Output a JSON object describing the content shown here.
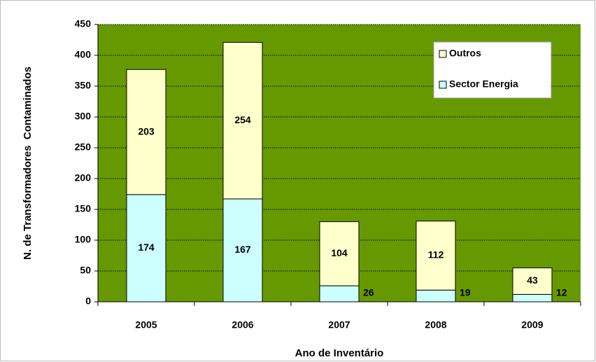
{
  "chart_data": {
    "type": "stacked_bar",
    "categories": [
      "2005",
      "2006",
      "2007",
      "2008",
      "2009"
    ],
    "series": [
      {
        "name": "Sector Energia",
        "color": "#ccffff",
        "values": [
          174,
          167,
          26,
          19,
          12
        ]
      },
      {
        "name": "Outros",
        "color": "#ffffcc",
        "values": [
          203,
          254,
          104,
          112,
          43
        ]
      }
    ],
    "ylim": [
      0,
      450
    ],
    "yticks": [
      0,
      50,
      100,
      150,
      200,
      250,
      300,
      350,
      400,
      450
    ],
    "xlabel": "Ano de Inventário",
    "ylabel": "N. de Transformadores  Contaminados",
    "plot_background": "#669900",
    "grid": true,
    "legend": "upper right"
  }
}
